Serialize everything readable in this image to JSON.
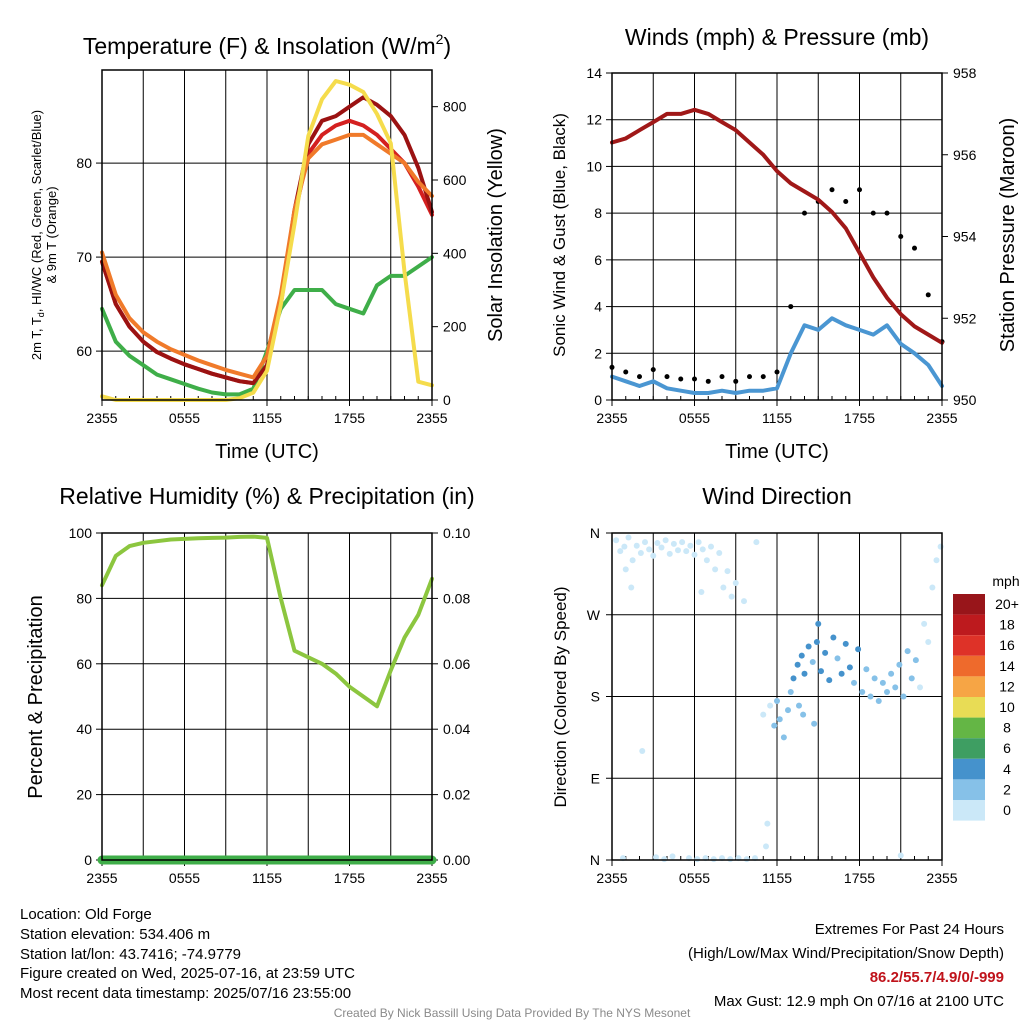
{
  "colors": {
    "temp_red": "#d42020",
    "temp_green": "#3fae49",
    "temp_maroon": "#9b1212",
    "temp_orange": "#f07a2a",
    "insolation_yellow": "#f5dc4c",
    "wind_blue": "#4a96d2",
    "gust_black": "#000000",
    "pressure_maroon": "#a01818",
    "rh_green": "#8cc63f",
    "precip_green": "#3fae49"
  },
  "panels": {
    "temperature": {
      "title_main": "Temperature (F) & Insolation (W/m",
      "title_sup": "2",
      "title_end": ")",
      "ylabel_line1_a": "2m T, T",
      "ylabel_line1_sub": "d",
      "ylabel_line1_b": ", HI/WC (Red, Green, Scarlet/Blue)",
      "ylabel_line2": "& 9m T (Orange)",
      "y2label": "Solar Insolation (Yellow)",
      "xlabel": "Time (UTC)"
    },
    "winds": {
      "title": "Winds (mph) & Pressure (mb)",
      "ylabel": "Sonic Wind & Gust (Blue, Black)",
      "y2label": "Station Pressure (Maroon)",
      "xlabel": "Time (UTC)"
    },
    "humidity": {
      "title": "Relative Humidity (%) & Precipitation (in)",
      "ylabel": "Percent & Precipitation"
    },
    "direction": {
      "title": "Wind Direction",
      "ylabel": "Direction (Colored By Speed)",
      "legend_title": "mph"
    }
  },
  "chart_data": [
    {
      "type": "line",
      "title": "Temperature (F) & Insolation (W/m2)",
      "xlabel": "Time (UTC)",
      "ylabel": "2m T, Td, HI/WC (Red, Green, Scarlet/Blue) & 9m T (Orange)",
      "y2label": "Solar Insolation (Yellow)",
      "xlim": [
        0,
        24
      ],
      "ylim": [
        54.8,
        89.9
      ],
      "y2lim": [
        0,
        900
      ],
      "x_ticks": [
        "2355",
        "0555",
        "1155",
        "1755",
        "2355"
      ],
      "y_ticks": [
        60,
        70,
        80
      ],
      "y2_ticks": [
        0,
        200,
        400,
        600,
        800
      ],
      "grid": true,
      "x_hours": [
        0,
        1,
        2,
        3,
        4,
        5,
        6,
        7,
        8,
        9,
        10,
        11,
        12,
        13,
        14,
        15,
        16,
        17,
        18,
        19,
        20,
        21,
        22,
        23,
        24
      ],
      "series": [
        {
          "name": "",
          "axis": "left",
          "color": "temp_red",
          "values": [
            69.5,
            65.0,
            62.6,
            61.0,
            59.9,
            59.2,
            58.6,
            58.1,
            57.6,
            57.2,
            56.8,
            56.6,
            58.5,
            65.0,
            74.5,
            81.0,
            83.0,
            84.0,
            84.5,
            84.0,
            83.0,
            81.5,
            80.0,
            77.5,
            74.5
          ]
        },
        {
          "name": "",
          "axis": "left",
          "color": "temp_green",
          "values": [
            64.5,
            61.0,
            59.5,
            58.5,
            57.5,
            57.0,
            56.5,
            56.0,
            55.6,
            55.4,
            55.4,
            56.0,
            60.0,
            64.5,
            66.5,
            66.5,
            66.5,
            65.0,
            64.5,
            64.0,
            67.0,
            68.0,
            68.0,
            69.0,
            70.0
          ]
        },
        {
          "name": "",
          "axis": "left",
          "color": "temp_maroon",
          "values": [
            69.5,
            65.0,
            62.6,
            61.0,
            59.9,
            59.2,
            58.6,
            58.1,
            57.6,
            57.2,
            56.8,
            56.6,
            58.5,
            65.0,
            75.0,
            82.0,
            84.5,
            85.0,
            86.0,
            87.0,
            86.2,
            85.0,
            83.0,
            79.5,
            74.8
          ]
        },
        {
          "name": "",
          "axis": "left",
          "color": "temp_orange",
          "values": [
            70.5,
            66.0,
            63.5,
            62.0,
            61.0,
            60.2,
            59.6,
            59.0,
            58.5,
            58.0,
            57.6,
            57.2,
            59.5,
            66.0,
            75.0,
            80.5,
            82.0,
            82.5,
            83.0,
            83.0,
            82.0,
            81.0,
            80.0,
            78.0,
            76.5
          ]
        },
        {
          "name": "",
          "axis": "right",
          "color": "insolation_yellow",
          "values": [
            10,
            0,
            0,
            0,
            0,
            0,
            0,
            0,
            0,
            0,
            5,
            20,
            80,
            260,
            480,
            720,
            820,
            870,
            860,
            840,
            780,
            700,
            350,
            50,
            40
          ]
        }
      ]
    },
    {
      "type": "line",
      "title": "Winds (mph) & Pressure (mb)",
      "xlabel": "Time (UTC)",
      "ylabel": "Sonic Wind & Gust (Blue, Black)",
      "y2label": "Station Pressure (Maroon)",
      "xlim": [
        0,
        24
      ],
      "ylim": [
        0,
        14
      ],
      "y2lim": [
        950,
        958
      ],
      "x_ticks": [
        "2355",
        "0555",
        "1155",
        "1755",
        "2355"
      ],
      "y_ticks": [
        0,
        2,
        4,
        6,
        8,
        10,
        12,
        14
      ],
      "y2_ticks": [
        950,
        952,
        954,
        956,
        958
      ],
      "grid": true,
      "x_hours": [
        0,
        1,
        2,
        3,
        4,
        5,
        6,
        7,
        8,
        9,
        10,
        11,
        12,
        13,
        14,
        15,
        16,
        17,
        18,
        19,
        20,
        21,
        22,
        23,
        24
      ],
      "series": [
        {
          "name": "",
          "axis": "left",
          "color": "wind_blue",
          "values": [
            1.0,
            0.8,
            0.6,
            0.8,
            0.5,
            0.4,
            0.3,
            0.3,
            0.4,
            0.3,
            0.4,
            0.4,
            0.5,
            2.0,
            3.2,
            3.0,
            3.5,
            3.2,
            3.0,
            2.8,
            3.2,
            2.4,
            2.0,
            1.5,
            0.6
          ]
        },
        {
          "name": "",
          "axis": "left",
          "color": "gust_black",
          "values": [
            1.4,
            1.2,
            1.0,
            1.3,
            1.0,
            0.9,
            0.9,
            0.8,
            1.0,
            0.8,
            1.0,
            1.0,
            1.2,
            4.0,
            8.0,
            8.5,
            9.0,
            8.5,
            9.0,
            8.0,
            8.0,
            7.0,
            6.5,
            4.5,
            2.5
          ]
        },
        {
          "name": "",
          "axis": "right",
          "color": "pressure_maroon",
          "values": [
            956.3,
            956.4,
            956.6,
            956.8,
            957.0,
            957.0,
            957.1,
            957.0,
            956.8,
            956.6,
            956.3,
            956.0,
            955.6,
            955.3,
            955.1,
            954.9,
            954.6,
            954.2,
            953.6,
            953.0,
            952.5,
            952.1,
            951.8,
            951.6,
            951.4
          ]
        }
      ]
    },
    {
      "type": "line",
      "title": "Relative Humidity (%) & Precipitation (in)",
      "ylabel": "Percent & Precipitation",
      "xlim": [
        0,
        24
      ],
      "ylim": [
        0,
        100
      ],
      "y2lim": [
        0,
        0.1
      ],
      "x_ticks": [
        "2355",
        "0555",
        "1155",
        "1755",
        "2355"
      ],
      "y_ticks": [
        0,
        20,
        40,
        60,
        80,
        100
      ],
      "y2_ticks": [
        "0.00",
        "0.02",
        "0.04",
        "0.06",
        "0.08",
        "0.10"
      ],
      "grid": true,
      "x_hours": [
        0,
        1,
        2,
        3,
        4,
        5,
        6,
        7,
        8,
        9,
        10,
        11,
        12,
        13,
        14,
        15,
        16,
        17,
        18,
        19,
        20,
        21,
        22,
        23,
        24
      ],
      "series": [
        {
          "name": "",
          "axis": "left",
          "color": "rh_green",
          "values": [
            84,
            93,
            96,
            97,
            97.5,
            98,
            98.2,
            98.4,
            98.5,
            98.6,
            98.8,
            98.9,
            98.5,
            80,
            64,
            62,
            60,
            57,
            53,
            50,
            47,
            58,
            68,
            75,
            86
          ]
        },
        {
          "name": "",
          "axis": "right",
          "color": "precip_green",
          "values": [
            0,
            0,
            0,
            0,
            0,
            0,
            0,
            0,
            0,
            0,
            0,
            0,
            0,
            0,
            0,
            0,
            0,
            0,
            0,
            0,
            0,
            0,
            0,
            0,
            0
          ]
        }
      ]
    },
    {
      "type": "scatter",
      "title": "Wind Direction",
      "ylabel": "Direction (Colored By Speed)",
      "xlim": [
        0,
        24
      ],
      "ylim": [
        0,
        360
      ],
      "x_ticks": [
        "2355",
        "0555",
        "1155",
        "1755",
        "2355"
      ],
      "y_tick_labels": [
        "N",
        "E",
        "S",
        "W",
        "N"
      ],
      "y_tick_values": [
        0,
        90,
        180,
        270,
        360
      ],
      "grid": true,
      "legend": "right",
      "legend_title": "mph",
      "color_scale": {
        "labels": [
          "0",
          "2",
          "4",
          "6",
          "8",
          "10",
          "12",
          "14",
          "16",
          "18",
          "20+"
        ],
        "colors": [
          "#cbe8f8",
          "#86c1e8",
          "#4592cc",
          "#3e9e62",
          "#64b645",
          "#e8dc55",
          "#f6a545",
          "#ee6a2c",
          "#de3228",
          "#bd1a1e",
          "#98151a"
        ]
      },
      "points": [
        {
          "x": 0.3,
          "y": 352,
          "speed": 0
        },
        {
          "x": 0.6,
          "y": 340,
          "speed": 0
        },
        {
          "x": 0.9,
          "y": 345,
          "speed": 0
        },
        {
          "x": 1.2,
          "y": 355,
          "speed": 0
        },
        {
          "x": 1.5,
          "y": 330,
          "speed": 0
        },
        {
          "x": 1.8,
          "y": 346,
          "speed": 0
        },
        {
          "x": 2.1,
          "y": 338,
          "speed": 0
        },
        {
          "x": 2.4,
          "y": 350,
          "speed": 0
        },
        {
          "x": 2.7,
          "y": 342,
          "speed": 0
        },
        {
          "x": 3.0,
          "y": 335,
          "speed": 0
        },
        {
          "x": 3.3,
          "y": 349,
          "speed": 0
        },
        {
          "x": 3.6,
          "y": 344,
          "speed": 0
        },
        {
          "x": 3.9,
          "y": 352,
          "speed": 0
        },
        {
          "x": 4.2,
          "y": 337,
          "speed": 0
        },
        {
          "x": 4.5,
          "y": 348,
          "speed": 0
        },
        {
          "x": 4.8,
          "y": 341,
          "speed": 0
        },
        {
          "x": 5.1,
          "y": 350,
          "speed": 0
        },
        {
          "x": 5.4,
          "y": 340,
          "speed": 0
        },
        {
          "x": 5.7,
          "y": 346,
          "speed": 0
        },
        {
          "x": 6.0,
          "y": 336,
          "speed": 0
        },
        {
          "x": 6.3,
          "y": 350,
          "speed": 0
        },
        {
          "x": 6.6,
          "y": 342,
          "speed": 0
        },
        {
          "x": 6.9,
          "y": 330,
          "speed": 0
        },
        {
          "x": 7.2,
          "y": 345,
          "speed": 0
        },
        {
          "x": 7.5,
          "y": 320,
          "speed": 0
        },
        {
          "x": 7.8,
          "y": 338,
          "speed": 0
        },
        {
          "x": 8.1,
          "y": 300,
          "speed": 0
        },
        {
          "x": 8.4,
          "y": 318,
          "speed": 0
        },
        {
          "x": 8.7,
          "y": 290,
          "speed": 0
        },
        {
          "x": 9.0,
          "y": 305,
          "speed": 0
        },
        {
          "x": 9.6,
          "y": 285,
          "speed": 0
        },
        {
          "x": 10.5,
          "y": 350,
          "speed": 0
        },
        {
          "x": 1.0,
          "y": 320,
          "speed": 0
        },
        {
          "x": 1.4,
          "y": 300,
          "speed": 0
        },
        {
          "x": 6.5,
          "y": 295,
          "speed": 0
        },
        {
          "x": 2.2,
          "y": 120,
          "speed": 0
        },
        {
          "x": 0.8,
          "y": 2,
          "speed": 0
        },
        {
          "x": 3.2,
          "y": 3,
          "speed": 0
        },
        {
          "x": 3.8,
          "y": 1,
          "speed": 0
        },
        {
          "x": 4.4,
          "y": 4,
          "speed": 0
        },
        {
          "x": 5.6,
          "y": 2,
          "speed": 0
        },
        {
          "x": 6.2,
          "y": 1,
          "speed": 0
        },
        {
          "x": 6.8,
          "y": 2,
          "speed": 0
        },
        {
          "x": 7.4,
          "y": 1,
          "speed": 0
        },
        {
          "x": 8.0,
          "y": 2,
          "speed": 0
        },
        {
          "x": 8.6,
          "y": 1,
          "speed": 0
        },
        {
          "x": 9.2,
          "y": 2,
          "speed": 0
        },
        {
          "x": 9.8,
          "y": 1,
          "speed": 0
        },
        {
          "x": 10.4,
          "y": 2,
          "speed": 0
        },
        {
          "x": 11.2,
          "y": 15,
          "speed": 0
        },
        {
          "x": 11.3,
          "y": 40,
          "speed": 0
        },
        {
          "x": 11.0,
          "y": 160,
          "speed": 0
        },
        {
          "x": 11.5,
          "y": 170,
          "speed": 0
        },
        {
          "x": 11.8,
          "y": 148,
          "speed": 2
        },
        {
          "x": 12.0,
          "y": 175,
          "speed": 2
        },
        {
          "x": 12.2,
          "y": 155,
          "speed": 2
        },
        {
          "x": 12.5,
          "y": 135,
          "speed": 2
        },
        {
          "x": 12.8,
          "y": 165,
          "speed": 2
        },
        {
          "x": 13.0,
          "y": 185,
          "speed": 2
        },
        {
          "x": 13.2,
          "y": 200,
          "speed": 4
        },
        {
          "x": 13.5,
          "y": 215,
          "speed": 4
        },
        {
          "x": 13.8,
          "y": 225,
          "speed": 4
        },
        {
          "x": 14.0,
          "y": 205,
          "speed": 4
        },
        {
          "x": 14.3,
          "y": 235,
          "speed": 4
        },
        {
          "x": 14.6,
          "y": 218,
          "speed": 2
        },
        {
          "x": 14.9,
          "y": 240,
          "speed": 4
        },
        {
          "x": 15.2,
          "y": 208,
          "speed": 4
        },
        {
          "x": 15.5,
          "y": 228,
          "speed": 4
        },
        {
          "x": 15.8,
          "y": 198,
          "speed": 4
        },
        {
          "x": 16.1,
          "y": 245,
          "speed": 4
        },
        {
          "x": 16.4,
          "y": 222,
          "speed": 2
        },
        {
          "x": 16.7,
          "y": 205,
          "speed": 4
        },
        {
          "x": 17.0,
          "y": 238,
          "speed": 4
        },
        {
          "x": 17.3,
          "y": 212,
          "speed": 4
        },
        {
          "x": 17.6,
          "y": 195,
          "speed": 2
        },
        {
          "x": 17.9,
          "y": 232,
          "speed": 4
        },
        {
          "x": 18.2,
          "y": 185,
          "speed": 2
        },
        {
          "x": 18.5,
          "y": 210,
          "speed": 2
        },
        {
          "x": 18.8,
          "y": 180,
          "speed": 2
        },
        {
          "x": 19.1,
          "y": 200,
          "speed": 2
        },
        {
          "x": 19.4,
          "y": 175,
          "speed": 2
        },
        {
          "x": 19.7,
          "y": 195,
          "speed": 2
        },
        {
          "x": 20.0,
          "y": 185,
          "speed": 2
        },
        {
          "x": 20.3,
          "y": 205,
          "speed": 2
        },
        {
          "x": 20.6,
          "y": 190,
          "speed": 2
        },
        {
          "x": 20.9,
          "y": 215,
          "speed": 2
        },
        {
          "x": 21.2,
          "y": 180,
          "speed": 2
        },
        {
          "x": 21.5,
          "y": 230,
          "speed": 2
        },
        {
          "x": 21.8,
          "y": 200,
          "speed": 2
        },
        {
          "x": 22.1,
          "y": 220,
          "speed": 2
        },
        {
          "x": 22.4,
          "y": 190,
          "speed": 0
        },
        {
          "x": 22.7,
          "y": 260,
          "speed": 0
        },
        {
          "x": 23.0,
          "y": 240,
          "speed": 0
        },
        {
          "x": 23.3,
          "y": 300,
          "speed": 0
        },
        {
          "x": 23.6,
          "y": 330,
          "speed": 0
        },
        {
          "x": 23.9,
          "y": 345,
          "speed": 0
        },
        {
          "x": 21.0,
          "y": 5,
          "speed": 0
        },
        {
          "x": 15.0,
          "y": 260,
          "speed": 4
        },
        {
          "x": 13.6,
          "y": 170,
          "speed": 2
        },
        {
          "x": 14.7,
          "y": 150,
          "speed": 2
        },
        {
          "x": 13.9,
          "y": 160,
          "speed": 2
        }
      ]
    }
  ],
  "footer": {
    "location": "Location: Old Forge",
    "elevation": "Station elevation: 534.406 m",
    "latlon": "Station lat/lon: 43.7416; -74.9779",
    "created": "Figure created on Wed, 2025-07-16, at 23:59 UTC",
    "recent": "Most recent data timestamp: 2025/07/16 23:55:00",
    "extremes_title": "Extremes For Past 24 Hours",
    "extremes_sub": "(High/Low/Max Wind/Precipitation/Snow Depth)",
    "extremes_values": "86.2/55.7/4.9/0/-999",
    "max_gust": "Max Gust: 12.9 mph On 07/16 at 2100 UTC",
    "credit": "Created By Nick Bassill Using Data Provided By The NYS Mesonet"
  }
}
